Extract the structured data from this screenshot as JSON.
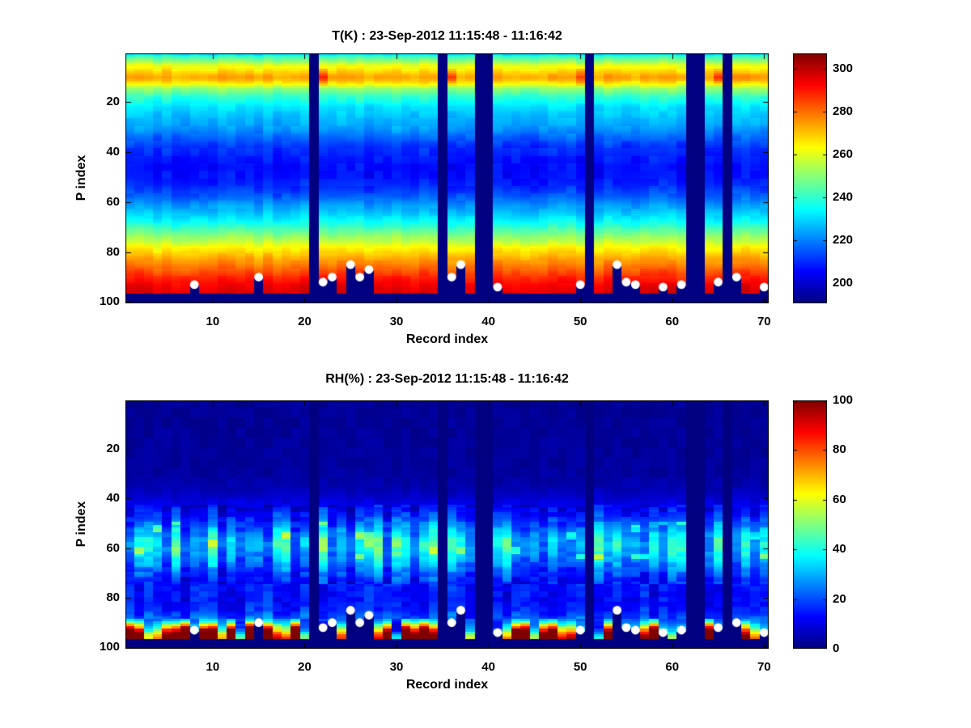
{
  "figure": {
    "background": "#ffffff",
    "axis_color": "#000000",
    "marker_color": "#ffffff"
  },
  "chart_data": [
    {
      "id": "temperature",
      "type": "heatmap",
      "title": "T(K) : 23-Sep-2012 11:15:48 - 11:16:42",
      "xlabel": "Record index",
      "ylabel": "P index",
      "x_range": [
        1,
        70
      ],
      "y_range": [
        1,
        100
      ],
      "y_axis_reversed": true,
      "x_ticks": [
        10,
        20,
        30,
        40,
        50,
        60,
        70
      ],
      "y_ticks": [
        20,
        40,
        60,
        80,
        100
      ],
      "colormap": "jet",
      "color_limits": [
        190.6,
        307.2
      ],
      "colorbar_ticks": [
        200,
        220,
        240,
        260,
        280,
        300
      ],
      "mean_profile": {
        "p": [
          1,
          3,
          5,
          7,
          9,
          10,
          11,
          13,
          15,
          18,
          22,
          26,
          30,
          34,
          38,
          42,
          46,
          50,
          54,
          58,
          62,
          66,
          70,
          74,
          78,
          82,
          86,
          90,
          93,
          96
        ],
        "value": [
          233,
          247,
          259,
          266,
          272,
          274,
          272,
          262,
          250,
          239,
          231,
          227,
          223,
          217,
          211,
          208,
          206,
          207,
          210,
          216,
          224,
          231,
          240,
          252,
          263,
          272,
          280,
          288,
          293,
          296
        ]
      },
      "enhanced_warm_band_records": [
        22,
        36,
        50,
        65
      ],
      "missing_records": [
        21,
        35,
        39,
        40,
        51,
        62,
        63,
        66
      ],
      "default_surface_p": 96,
      "surface_markers": {
        "shape": "circle",
        "color": "#ffffff",
        "record": [
          8,
          15,
          22,
          23,
          25,
          26,
          27,
          36,
          37,
          41,
          50,
          54,
          55,
          56,
          59,
          61,
          65,
          67,
          70
        ],
        "p": [
          93,
          90,
          92,
          90,
          85,
          90,
          87,
          90,
          85,
          94,
          93,
          85,
          92,
          93,
          94,
          93,
          92,
          90,
          94
        ]
      }
    },
    {
      "id": "relative-humidity",
      "type": "heatmap",
      "title": "RH(%) : 23-Sep-2012 11:15:48 - 11:16:42",
      "xlabel": "Record index",
      "ylabel": "P index",
      "x_range": [
        1,
        70
      ],
      "y_range": [
        1,
        100
      ],
      "y_axis_reversed": true,
      "x_ticks": [
        10,
        20,
        30,
        40,
        50,
        60,
        70
      ],
      "y_ticks": [
        20,
        40,
        60,
        80,
        100
      ],
      "colormap": "jet",
      "color_limits": [
        0,
        100
      ],
      "colorbar_ticks": [
        0,
        20,
        40,
        60,
        80,
        100
      ],
      "mean_profile": {
        "p": [
          1,
          30,
          36,
          40,
          44,
          47,
          50,
          53,
          56,
          58,
          60,
          63,
          66,
          69,
          72,
          75,
          78,
          82,
          85,
          88,
          90,
          92,
          93,
          94,
          95,
          96
        ],
        "value": [
          2,
          3,
          5,
          8,
          12,
          16,
          22,
          28,
          33,
          35,
          35,
          31,
          26,
          21,
          17,
          14,
          13,
          13,
          15,
          20,
          26,
          36,
          45,
          55,
          64,
          70
        ]
      },
      "enhanced_warm_band_records": [],
      "missing_records": [
        21,
        35,
        39,
        40,
        51,
        62,
        63,
        66
      ],
      "default_surface_p": 96,
      "surface_markers": {
        "shape": "circle",
        "color": "#ffffff",
        "record": [
          8,
          15,
          22,
          23,
          25,
          26,
          27,
          36,
          37,
          41,
          50,
          54,
          55,
          56,
          59,
          61,
          65,
          67,
          70
        ],
        "p": [
          93,
          90,
          92,
          90,
          85,
          90,
          87,
          90,
          85,
          94,
          93,
          85,
          92,
          93,
          94,
          93,
          92,
          90,
          94
        ]
      }
    }
  ]
}
